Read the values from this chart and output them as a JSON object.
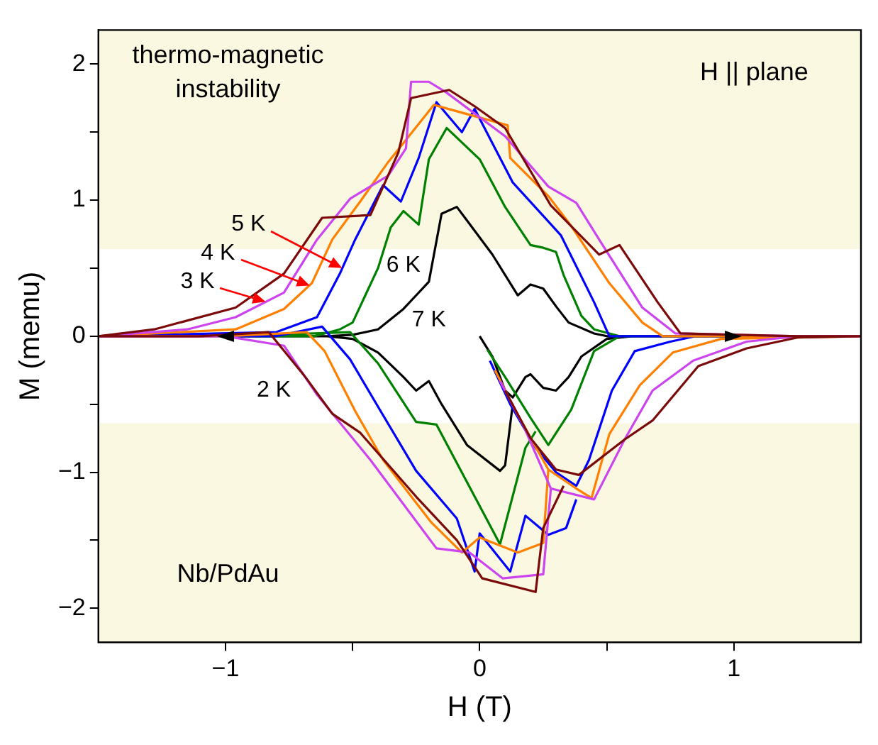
{
  "chart_data": {
    "type": "line",
    "xlabel": "H (T)",
    "ylabel": "M (memu)",
    "xlim": [
      -1.5,
      1.5
    ],
    "ylim": [
      -2.25,
      2.25
    ],
    "xticks": [
      -1,
      {
        "value": -0.5,
        "label": null
      },
      0,
      {
        "value": 0.5,
        "label": null
      },
      1
    ],
    "yticks": [
      -2,
      {
        "value": -1.5,
        "label": null
      },
      -1,
      {
        "value": -0.5,
        "label": null
      },
      0,
      {
        "value": 0.5,
        "label": null
      },
      1,
      {
        "value": 1.5,
        "label": null
      },
      2
    ],
    "grid": false,
    "legend": false,
    "marker": "none",
    "line_style": "solid",
    "bands": [
      {
        "axis": "y",
        "from": 0.64,
        "to": 2.25,
        "color": "#fbf8e1"
      },
      {
        "axis": "y",
        "from": -2.25,
        "to": -0.64,
        "color": "#fbf8e1"
      }
    ],
    "annotations": [
      "thermo-magnetic instability",
      "H || plane",
      "Nb/PdAu",
      "2 K",
      {
        "text": "3 K",
        "x": -0.84,
        "y": 0.25
      },
      {
        "text": "4 K",
        "x": -0.67,
        "y": 0.37
      },
      {
        "text": "5 K",
        "x": -0.54,
        "y": 0.5
      },
      "6 K",
      "7 K"
    ],
    "series": [
      {
        "color": "#7b0a0a",
        "x": [
          0.1,
          0.2,
          0.3,
          0.39,
          0.57,
          0.68,
          0.86,
          1.05,
          1.25,
          1.5,
          1.25,
          0.79,
          0.7,
          0.55,
          0.47,
          0.28,
          0.1,
          -0.02,
          -0.12,
          -0.27,
          -0.32,
          -0.43,
          -0.62,
          -0.77,
          -0.96,
          -1.28,
          -1.5,
          -1.1,
          -0.83,
          -0.69,
          -0.58,
          -0.47,
          -0.25,
          -0.09,
          0.01,
          0.22,
          0.25,
          0.33
        ],
        "values": [
          -0.4,
          -0.75,
          -0.98,
          -1.02,
          -0.76,
          -0.62,
          -0.22,
          -0.09,
          -0.01,
          0,
          0,
          0.02,
          0.25,
          0.67,
          0.6,
          0.96,
          1.53,
          1.69,
          1.81,
          1.75,
          1.35,
          0.89,
          0.87,
          0.46,
          0.21,
          0.05,
          0,
          0,
          0.03,
          -0.29,
          -0.57,
          -0.71,
          -1.18,
          -1.5,
          -1.78,
          -1.88,
          -1.41,
          -1.1
        ]
      },
      {
        "color": "#cc44ee",
        "x": [
          0.08,
          0.17,
          0.28,
          0.45,
          0.57,
          0.68,
          0.84,
          1.05,
          1.25,
          1.5,
          1.25,
          0.77,
          0.64,
          0.47,
          0.38,
          0.27,
          0.1,
          -0.13,
          -0.2,
          -0.27,
          -0.29,
          -0.36,
          -0.51,
          -0.64,
          -0.77,
          -0.96,
          -1.15,
          -1.5,
          -1.0,
          -0.77,
          -0.64,
          -0.43,
          -0.17,
          -0.04,
          0.09,
          0.25,
          0.28
        ],
        "values": [
          -0.33,
          -0.65,
          -1.12,
          -1.2,
          -0.76,
          -0.4,
          -0.18,
          -0.04,
          0,
          0,
          0,
          0.02,
          0.21,
          0.71,
          0.98,
          1.1,
          1.47,
          1.79,
          1.87,
          1.87,
          1.38,
          1.18,
          1.01,
          0.71,
          0.32,
          0.14,
          0.05,
          0,
          0,
          -0.07,
          -0.43,
          -0.91,
          -1.56,
          -1.59,
          -1.78,
          -1.75,
          -1.12
        ]
      },
      {
        "color": "#ff8000",
        "x": [
          0.06,
          0.15,
          0.27,
          0.38,
          0.44,
          0.51,
          0.63,
          0.76,
          0.95,
          1.5,
          0.72,
          0.64,
          0.51,
          0.36,
          0.27,
          0.12,
          0.11,
          -0.18,
          -0.36,
          -0.47,
          -0.58,
          -0.66,
          -0.77,
          -0.96,
          -1.5,
          -1.0,
          -0.68,
          -0.61,
          -0.49,
          -0.38,
          -0.19,
          -0.07,
          0,
          0.15,
          0.25,
          0.27
        ],
        "values": [
          -0.25,
          -0.58,
          -0.98,
          -1.12,
          -1.19,
          -0.72,
          -0.36,
          -0.12,
          -0.02,
          0,
          0,
          0.1,
          0.39,
          0.81,
          1.03,
          1.31,
          1.55,
          1.7,
          1.28,
          0.99,
          0.71,
          0.39,
          0.2,
          0.05,
          0,
          0,
          0.03,
          -0.11,
          -0.55,
          -0.91,
          -1.37,
          -1.59,
          -1.48,
          -1.59,
          -1.52,
          -0.98
        ]
      },
      {
        "color": "#0000ff",
        "x": [
          0.04,
          0.12,
          0.22,
          0.3,
          0.38,
          0.43,
          0.52,
          0.61,
          0.75,
          0.85,
          1.5,
          0.51,
          0.45,
          0.32,
          0.13,
          -0.02,
          -0.07,
          -0.17,
          -0.24,
          -0.31,
          -0.38,
          -0.49,
          -0.55,
          -0.64,
          -0.8,
          -1.5,
          -0.8,
          -0.62,
          -0.51,
          -0.39,
          -0.25,
          -0.09,
          -0.02,
          0,
          0.12,
          0.18,
          0.27,
          0.34,
          0.38
        ],
        "values": [
          -0.18,
          -0.5,
          -0.82,
          -1.0,
          -1.1,
          -0.91,
          -0.4,
          -0.11,
          -0.04,
          0,
          0,
          0,
          0.25,
          0.74,
          1.13,
          1.67,
          1.5,
          1.72,
          1.31,
          0.99,
          1.11,
          0.71,
          0.46,
          0.14,
          0.03,
          0,
          0,
          0.07,
          -0.17,
          -0.55,
          -0.99,
          -1.34,
          -1.73,
          -1.45,
          -1.73,
          -1.32,
          -1.46,
          -1.41,
          -1.2
        ]
      },
      {
        "color": "#008000",
        "x": [
          0.03,
          0.1,
          0.2,
          0.27,
          0.36,
          0.45,
          0.55,
          1.0,
          0.55,
          0.45,
          0.4,
          0.33,
          0.3,
          0.25,
          0.2,
          0.1,
          0,
          -0.13,
          -0.2,
          -0.24,
          -0.3,
          -0.35,
          -0.4,
          -0.45,
          -0.5,
          -0.55,
          -0.65,
          -1.0,
          -0.65,
          -0.51,
          -0.4,
          -0.25,
          -0.17,
          0.08,
          0.18,
          0.22
        ],
        "values": [
          -0.1,
          -0.3,
          -0.6,
          -0.8,
          -0.54,
          -0.11,
          0,
          0,
          0,
          0.05,
          0.15,
          0.45,
          0.62,
          0.65,
          0.67,
          0.95,
          1.3,
          1.53,
          1.3,
          0.82,
          0.92,
          0.8,
          0.5,
          0.3,
          0.1,
          0.05,
          0,
          0,
          0.02,
          0.03,
          -0.2,
          -0.63,
          -0.65,
          -1.53,
          -0.82,
          -0.7
        ]
      },
      {
        "color": "#000000",
        "x": [
          0,
          0.05,
          0.1,
          0.13,
          0.18,
          0.2,
          0.25,
          0.3,
          0.35,
          0.4,
          0.5,
          0.6,
          1.0,
          0.5,
          0.45,
          0.35,
          0.3,
          0.25,
          0.2,
          0.15,
          0.05,
          -0.05,
          -0.09,
          -0.15,
          -0.2,
          -0.25,
          -0.3,
          -0.4,
          -0.5,
          -0.6,
          -1.0,
          -0.6,
          -0.5,
          -0.4,
          -0.3,
          -0.25,
          -0.2,
          -0.15,
          -0.05,
          0.08,
          0.1,
          0.13
        ],
        "values": [
          0,
          -0.15,
          -0.4,
          -0.45,
          -0.3,
          -0.28,
          -0.38,
          -0.4,
          -0.3,
          -0.15,
          -0.02,
          0,
          0,
          0,
          0.02,
          0.1,
          0.22,
          0.35,
          0.38,
          0.3,
          0.6,
          0.85,
          0.95,
          0.9,
          0.4,
          0.3,
          0.2,
          0.05,
          0.01,
          0,
          0,
          0,
          -0.02,
          -0.12,
          -0.3,
          -0.4,
          -0.33,
          -0.5,
          -0.8,
          -0.99,
          -0.95,
          -0.5
        ]
      }
    ]
  }
}
